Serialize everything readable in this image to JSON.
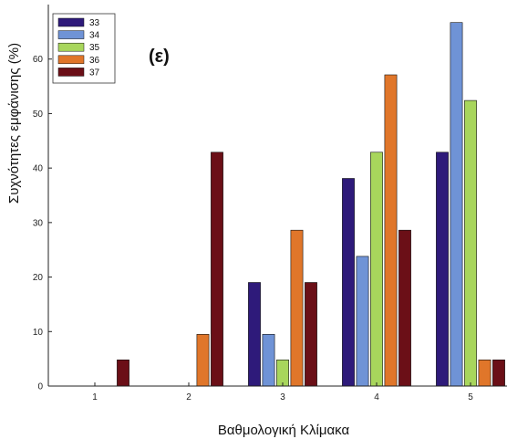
{
  "chart_data": {
    "type": "bar",
    "title": "",
    "panel_label": "(ε)",
    "xlabel": "Βαθμολογική Κλίμακα",
    "ylabel": "Συχνότητες εμφάνισης (%)",
    "categories": [
      "1",
      "2",
      "3",
      "4",
      "5"
    ],
    "ylim": [
      0,
      70
    ],
    "yticks": [
      0,
      10,
      20,
      30,
      40,
      50,
      60
    ],
    "grid": false,
    "legend_position": "top-left",
    "series": [
      {
        "name": "33",
        "color": "#2e1a7a",
        "values": [
          0,
          0,
          19.0,
          38.1,
          42.9
        ]
      },
      {
        "name": "34",
        "color": "#6f93d6",
        "values": [
          0,
          0,
          9.5,
          23.8,
          66.7
        ]
      },
      {
        "name": "35",
        "color": "#a8d65c",
        "values": [
          0,
          0,
          4.8,
          42.9,
          52.4
        ]
      },
      {
        "name": "36",
        "color": "#e0762a",
        "values": [
          0,
          9.5,
          28.6,
          57.1,
          4.8
        ]
      },
      {
        "name": "37",
        "color": "#6b0f17",
        "values": [
          4.8,
          42.9,
          19.0,
          28.6,
          4.8
        ]
      }
    ]
  }
}
